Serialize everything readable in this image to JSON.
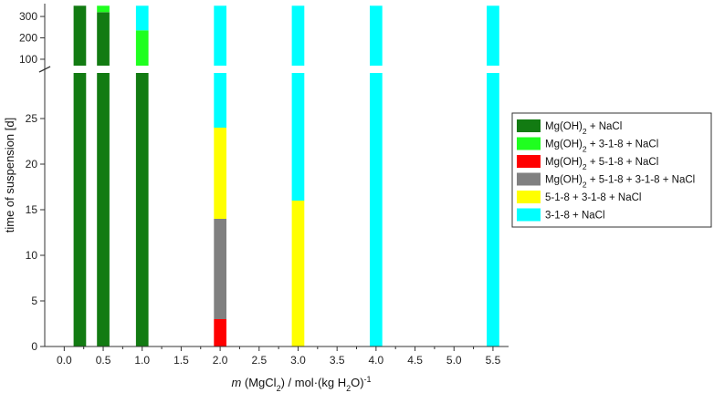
{
  "chart_data": {
    "type": "bar",
    "title": "",
    "xlabel": "m (MgCl2) / mol·(kg H2O)-1",
    "ylabel": "time of suspension [d]",
    "xlim": [
      -0.25,
      5.7
    ],
    "x_ticks": [
      0.0,
      0.5,
      1.0,
      1.5,
      2.0,
      2.5,
      3.0,
      3.5,
      4.0,
      4.5,
      5.0,
      5.5
    ],
    "x_tick_labels": [
      "0.0",
      "0.5",
      "1.0",
      "1.5",
      "2.0",
      "2.5",
      "3.0",
      "3.5",
      "4.0",
      "4.5",
      "5.0",
      "5.5"
    ],
    "y_axis_break": true,
    "y_lower_range": [
      0,
      30
    ],
    "y_upper_range": [
      70,
      360
    ],
    "y_lower_ticks": [
      0,
      5,
      10,
      15,
      20,
      25
    ],
    "y_upper_ticks": [
      100,
      200,
      300
    ],
    "bar_width": 0.16,
    "phases": [
      {
        "key": "mgoh2",
        "label_base": "Mg(OH)",
        "label_sub": "2",
        "label_rest": " + NaCl",
        "color": "#127B12"
      },
      {
        "key": "mgoh2_318",
        "label_base": "Mg(OH)",
        "label_sub": "2",
        "label_rest": " + 3-1-8 + NaCl",
        "color": "#1FFF1F"
      },
      {
        "key": "mgoh2_518",
        "label_base": "Mg(OH)",
        "label_sub": "2",
        "label_rest": " + 5-1-8 + NaCl",
        "color": "#FF0000"
      },
      {
        "key": "mgoh2_518_318",
        "label_base": "Mg(OH)",
        "label_sub": "2",
        "label_rest": " + 5-1-8 + 3-1-8 + NaCl",
        "color": "#808080"
      },
      {
        "key": "p518_318",
        "label_base": "5-1-8 + 3-1-8 + NaCl",
        "label_sub": "",
        "label_rest": "",
        "color": "#FFFF00"
      },
      {
        "key": "p318",
        "label_base": "3-1-8 + NaCl",
        "label_sub": "",
        "label_rest": "",
        "color": "#00FFFF"
      }
    ],
    "bars": [
      {
        "x": 0.2,
        "segments": [
          {
            "phase": "mgoh2",
            "from": 0,
            "to": 350
          }
        ]
      },
      {
        "x": 0.5,
        "segments": [
          {
            "phase": "mgoh2",
            "from": 0,
            "to": 320
          },
          {
            "phase": "mgoh2_318",
            "from": 320,
            "to": 350
          }
        ]
      },
      {
        "x": 1.0,
        "segments": [
          {
            "phase": "mgoh2",
            "from": 0,
            "to": 70
          },
          {
            "phase": "mgoh2_318",
            "from": 70,
            "to": 235
          },
          {
            "phase": "p318",
            "from": 235,
            "to": 350
          }
        ]
      },
      {
        "x": 2.0,
        "segments": [
          {
            "phase": "mgoh2_518",
            "from": 0,
            "to": 3
          },
          {
            "phase": "mgoh2_518_318",
            "from": 3,
            "to": 14
          },
          {
            "phase": "p518_318",
            "from": 14,
            "to": 24
          },
          {
            "phase": "p318",
            "from": 24,
            "to": 350
          }
        ]
      },
      {
        "x": 3.0,
        "segments": [
          {
            "phase": "p518_318",
            "from": 0,
            "to": 16
          },
          {
            "phase": "p318",
            "from": 16,
            "to": 350
          }
        ]
      },
      {
        "x": 4.0,
        "segments": [
          {
            "phase": "p318",
            "from": 0,
            "to": 350
          }
        ]
      },
      {
        "x": 5.5,
        "segments": [
          {
            "phase": "p318",
            "from": 0,
            "to": 350
          }
        ]
      }
    ],
    "legend_position": "right"
  }
}
